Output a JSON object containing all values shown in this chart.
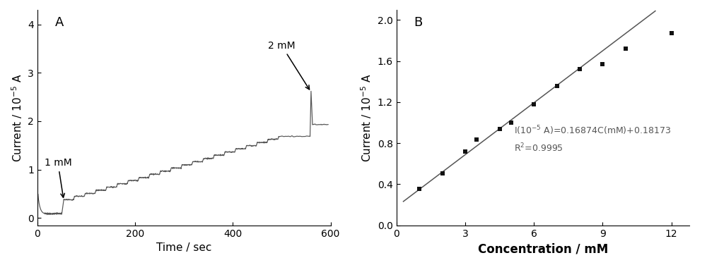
{
  "panel_A": {
    "label": "A",
    "xlabel": "Time / sec",
    "ylabel": "Current / 10$^{-5}$ A",
    "xlim": [
      0,
      600
    ],
    "ylim": [
      -0.15,
      4.3
    ],
    "yticks": [
      0.0,
      1.0,
      2.0,
      3.0,
      4.0
    ],
    "xticks": [
      0,
      200,
      400,
      600
    ],
    "line_color": "#555555"
  },
  "panel_B": {
    "label": "B",
    "xlabel": "Concentration / mM",
    "ylabel": "Current / 10$^{-5}$ A",
    "xlim": [
      0,
      12.8
    ],
    "ylim": [
      0.0,
      2.1
    ],
    "yticks": [
      0.0,
      0.4,
      0.8,
      1.2,
      1.6,
      2.0
    ],
    "xticks": [
      0,
      3,
      6,
      9,
      12
    ],
    "scatter_x": [
      1.0,
      2.0,
      3.0,
      3.5,
      4.5,
      5.0,
      6.0,
      7.0,
      8.0,
      9.0,
      10.0,
      12.0
    ],
    "scatter_y": [
      0.352,
      0.508,
      0.722,
      0.835,
      0.94,
      1.0,
      1.18,
      1.36,
      1.52,
      1.57,
      1.72,
      1.87
    ],
    "slope": 0.16874,
    "intercept": 0.18173,
    "equation_line1": "I(10$^{-5}$ A)=0.16874C(mM)+0.18173",
    "equation_line2": "R$^2$=0.9995",
    "line_color": "#555555",
    "marker_color": "#111111",
    "fit_x_start": 0.3,
    "fit_x_end": 11.3
  },
  "fig_width": 10.0,
  "fig_height": 3.76,
  "dpi": 100
}
